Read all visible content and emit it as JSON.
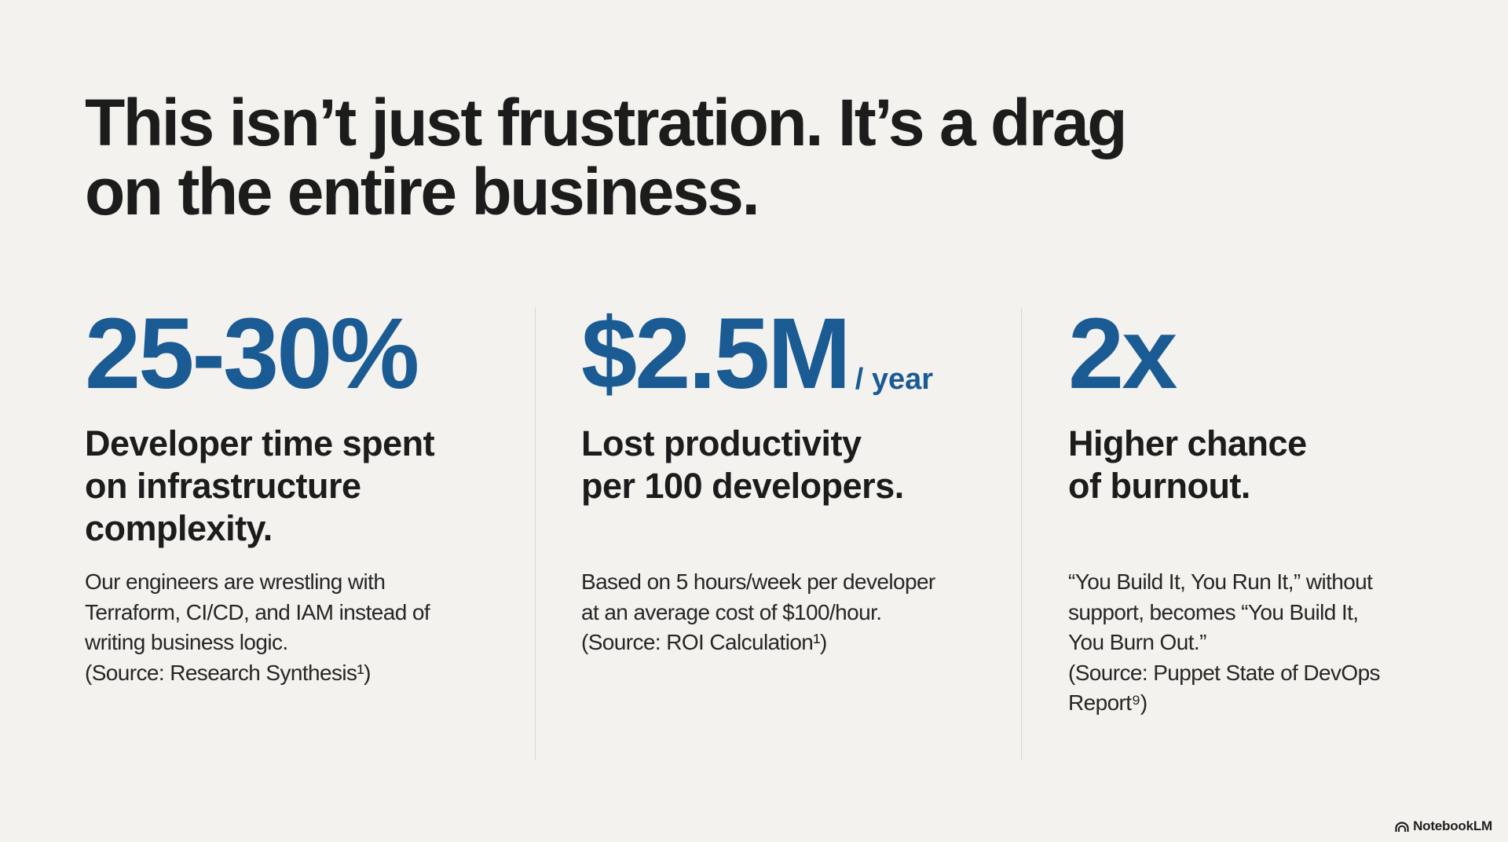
{
  "slide": {
    "title_lines": [
      "This isn’t just frustration. It’s a drag",
      "on the entire business."
    ],
    "stats": [
      {
        "value": "25-30%",
        "unit": "",
        "headline_lines": [
          "Developer time spent",
          "on infrastructure",
          "complexity."
        ],
        "body_lines": [
          "Our engineers are wrestling with",
          "Terraform, CI/CD, and IAM instead of",
          "writing business logic.",
          "(Source: Research Synthesis¹)"
        ]
      },
      {
        "value": "$2.5M",
        "unit": "/ year",
        "headline_lines": [
          "Lost productivity",
          "per 100 developers."
        ],
        "body_lines": [
          "Based on 5 hours/week per developer",
          "at an average cost of $100/hour.",
          "(Source: ROI Calculation¹)"
        ]
      },
      {
        "value": "2x",
        "unit": "",
        "headline_lines": [
          "Higher chance",
          "of burnout."
        ],
        "body_lines": [
          "“You Build It, You Run It,” without",
          "support, becomes “You Build It,",
          "You Burn Out.”",
          "(Source: Puppet State of DevOps",
          "Report⁹)"
        ]
      }
    ],
    "colors": {
      "background": "#f3f2ee",
      "accent": "#1b5b94",
      "text": "#1c1c1c",
      "divider": "#d6d5d1"
    }
  },
  "branding": {
    "label": "NotebookLM",
    "icon": "notebooklm-logo-icon"
  }
}
